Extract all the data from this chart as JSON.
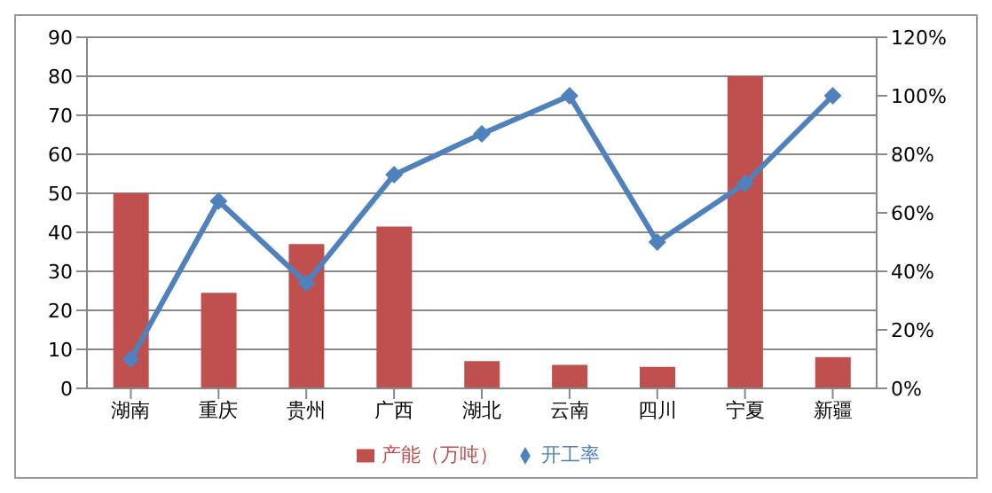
{
  "chart_data": {
    "type": "bar",
    "categories": [
      "湖南",
      "重庆",
      "贵州",
      "广西",
      "湖北",
      "云南",
      "四川",
      "宁夏",
      "新疆"
    ],
    "series": [
      {
        "name": "产能（万吨）",
        "color": "#c0504d",
        "values": [
          50,
          24.5,
          37,
          41.5,
          7,
          6,
          5.5,
          80,
          8
        ]
      },
      {
        "name": "开工率",
        "type": "line",
        "axis": "y2",
        "color": "#4f81bd",
        "marker": "diamond",
        "values": [
          10,
          64,
          36,
          73,
          87,
          100,
          50,
          70,
          100
        ]
      }
    ],
    "ylim": [
      0,
      90
    ],
    "yticks": [
      0,
      10,
      20,
      30,
      40,
      50,
      60,
      70,
      80,
      90
    ],
    "y2lim": [
      0,
      120
    ],
    "y2ticks": [
      {
        "value": 0,
        "label": "0%"
      },
      {
        "value": 20,
        "label": "20%"
      },
      {
        "value": 40,
        "label": "40%"
      },
      {
        "value": 60,
        "label": "60%"
      },
      {
        "value": 80,
        "label": "80%"
      },
      {
        "value": 100,
        "label": "100%"
      },
      {
        "value": 120,
        "label": "120%"
      }
    ],
    "grid": "y",
    "legend": "bottom"
  }
}
